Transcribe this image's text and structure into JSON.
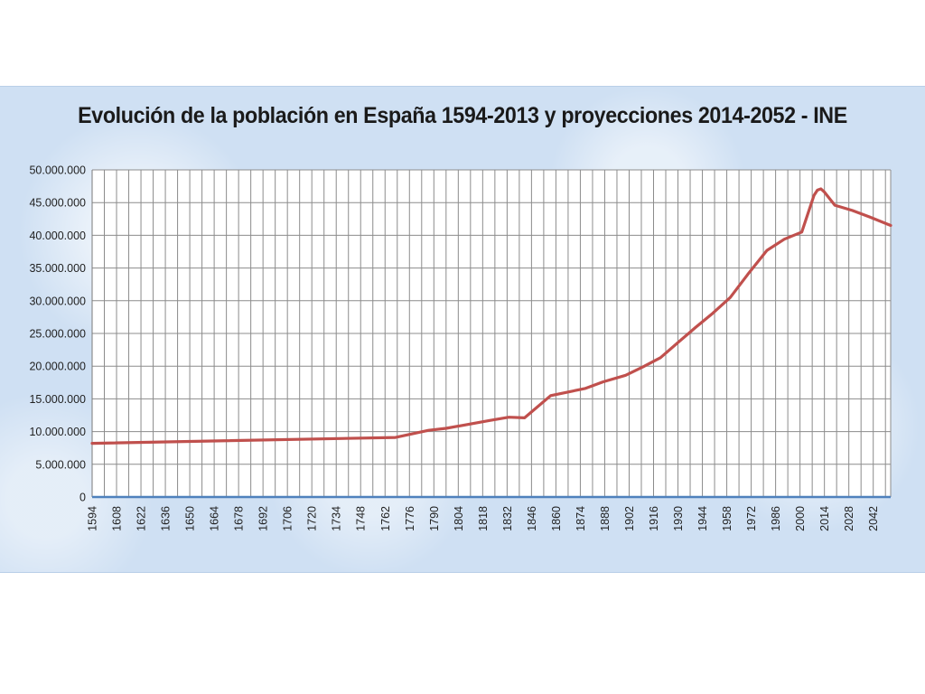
{
  "chart_data": {
    "type": "line",
    "title": "Evolución de la población en España 1594-2013 y proyecciones 2014-2052 - INE",
    "xlabel": "",
    "ylabel": "",
    "x_tick_labels": [
      "1594",
      "1608",
      "1622",
      "1636",
      "1650",
      "1664",
      "1678",
      "1692",
      "1706",
      "1720",
      "1734",
      "1748",
      "1762",
      "1776",
      "1790",
      "1804",
      "1818",
      "1832",
      "1846",
      "1860",
      "1874",
      "1888",
      "1902",
      "1916",
      "1930",
      "1944",
      "1958",
      "1972",
      "1986",
      "2000",
      "2014",
      "2028",
      "2042"
    ],
    "y_tick_labels": [
      "0",
      "5.000.000",
      "10.000.000",
      "15.000.000",
      "20.000.000",
      "25.000.000",
      "30.000.000",
      "35.000.000",
      "40.000.000",
      "45.000.000",
      "50.000.000"
    ],
    "xlim": [
      1594,
      2052
    ],
    "ylim": [
      0,
      50000000
    ],
    "grid": true,
    "series": [
      {
        "color": "#c0504d",
        "x": [
          1594,
          1768,
          1787,
          1797,
          1822,
          1833,
          1842,
          1857,
          1877,
          1887,
          1900,
          1910,
          1920,
          1930,
          1940,
          1950,
          1960,
          1970,
          1981,
          1991,
          2001,
          2008,
          2010,
          2012,
          2014,
          2020,
          2030,
          2040,
          2052
        ],
        "y": [
          8200000,
          9100000,
          10200000,
          10500000,
          11700000,
          12200000,
          12100000,
          15500000,
          16600000,
          17600000,
          18600000,
          19900000,
          21300000,
          23600000,
          25900000,
          28100000,
          30500000,
          34000000,
          37700000,
          39400000,
          40500000,
          46100000,
          46900000,
          47100000,
          46600000,
          44600000,
          43800000,
          42800000,
          41500000
        ]
      }
    ]
  }
}
